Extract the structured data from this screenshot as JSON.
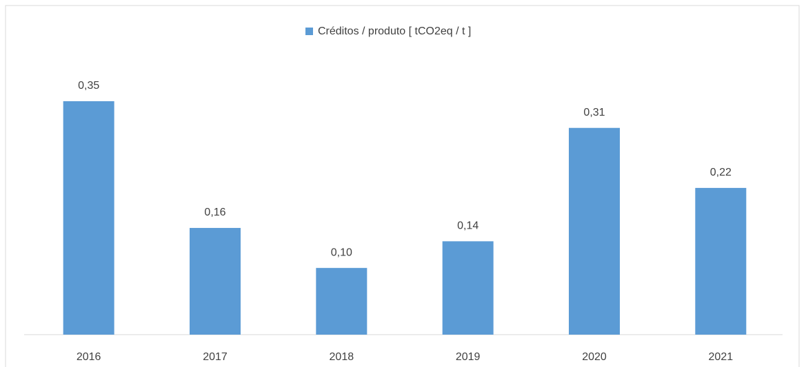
{
  "chart_data": {
    "type": "bar",
    "legend": "Créditos / produto [ tCO2eq / t ]",
    "categories": [
      "2016",
      "2017",
      "2018",
      "2019",
      "2020",
      "2021"
    ],
    "values": [
      0.35,
      0.16,
      0.1,
      0.14,
      0.31,
      0.22
    ],
    "value_labels": [
      "0,35",
      "0,16",
      "0,10",
      "0,14",
      "0,31",
      "0,22"
    ],
    "color": "#5b9bd5",
    "legend_position": "top"
  }
}
